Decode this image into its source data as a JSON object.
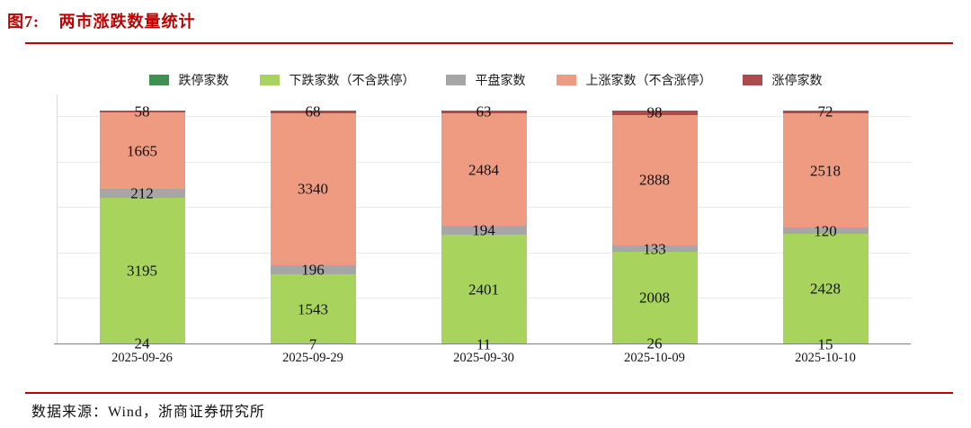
{
  "figure": {
    "label": "图7:",
    "title": "两市涨跌数量统计"
  },
  "footer": {
    "source_text": "数据来源：Wind，浙商证券研究所"
  },
  "colors": {
    "accent_red": "#c00000",
    "baseline": "#808080",
    "gridline": "#eaeaea",
    "y_axis_line": "#d9d9d9",
    "label_text": "#111111"
  },
  "chart_data": {
    "type": "bar",
    "stacked": true,
    "title": "两市涨跌数量统计",
    "xlabel": "",
    "ylabel": "",
    "grid": true,
    "legend_position": "top-center",
    "value_labels": "centered-on-segment",
    "ylim": [
      0,
      5500
    ],
    "gridline_step": 1000,
    "gridline_values": [
      1000,
      2000,
      3000,
      4000,
      5000
    ],
    "categories": [
      "2025-09-26",
      "2025-09-29",
      "2025-09-30",
      "2025-10-09",
      "2025-10-10"
    ],
    "series": [
      {
        "name": "跌停家数",
        "color": "#3e9150",
        "values": [
          24,
          7,
          11,
          26,
          15
        ]
      },
      {
        "name": "下跌家数（不含跌停）",
        "color": "#a8d45e",
        "values": [
          3195,
          1543,
          2401,
          2008,
          2428
        ]
      },
      {
        "name": "平盘家数",
        "color": "#a6a6a6",
        "values": [
          212,
          196,
          194,
          133,
          120
        ]
      },
      {
        "name": "上涨家数（不含涨停）",
        "color": "#ee9b81",
        "values": [
          1665,
          3340,
          2484,
          2888,
          2518
        ]
      },
      {
        "name": "涨停家数",
        "color": "#ae4a4e",
        "values": [
          58,
          68,
          63,
          98,
          72
        ]
      }
    ]
  }
}
